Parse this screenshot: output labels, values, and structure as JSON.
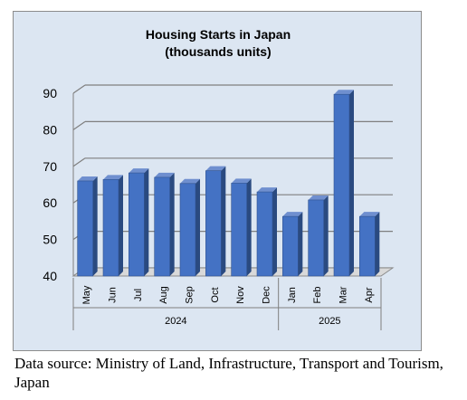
{
  "chart_data": {
    "type": "bar",
    "title": "Housing Starts in Japan",
    "subtitle": "(thousands units)",
    "categories": [
      "May",
      "Jun",
      "Jul",
      "Aug",
      "Sep",
      "Oct",
      "Nov",
      "Dec",
      "Jan",
      "Feb",
      "Mar",
      "Apr"
    ],
    "groups": [
      {
        "label": "2024",
        "span": 8
      },
      {
        "label": "2025",
        "span": 4
      }
    ],
    "values": [
      66,
      66.4,
      68.2,
      67,
      65.3,
      68.8,
      65.4,
      63,
      56.3,
      60.8,
      89.7,
      56.3
    ],
    "ylim": [
      40,
      90
    ],
    "yticks": [
      40,
      50,
      60,
      70,
      80,
      90
    ],
    "xlabel": "",
    "ylabel": "",
    "grid": true,
    "bar_color": "#4472c4",
    "plot_background": "#dce6f2"
  },
  "source_note": "Data source: Ministry of Land, Infrastructure, Transport and Tourism, Japan"
}
